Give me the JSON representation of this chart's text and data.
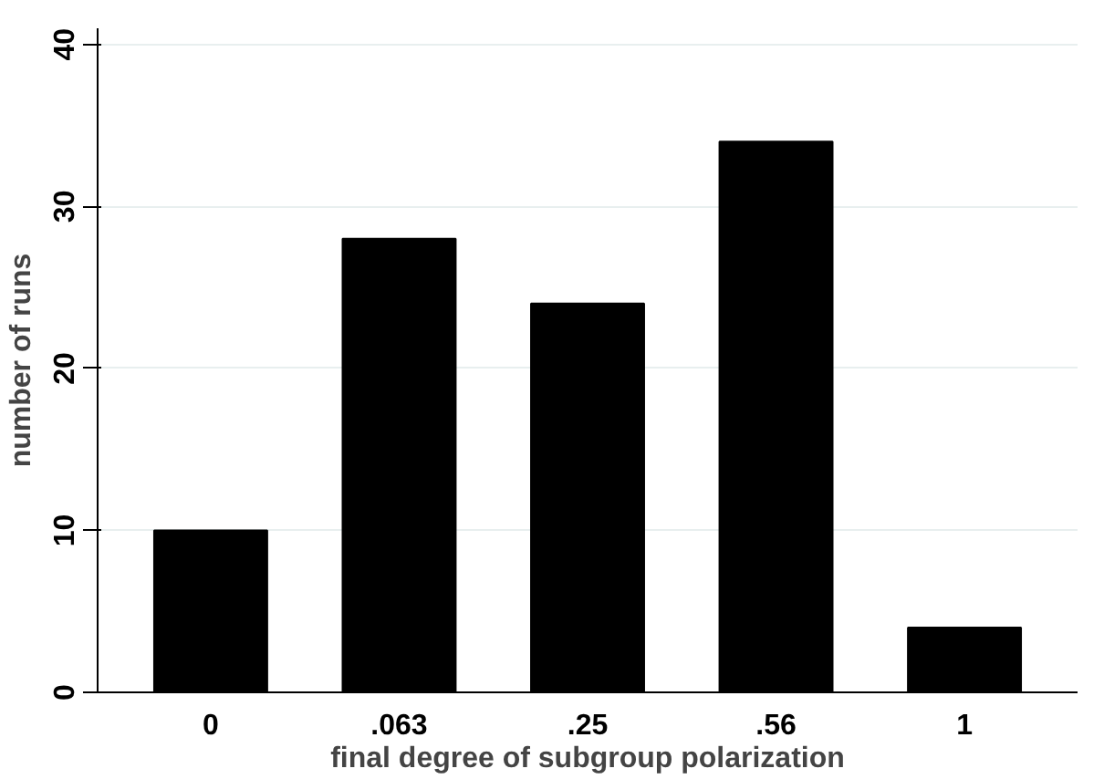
{
  "chart_data": {
    "type": "bar",
    "xlabel": "final degree of subgroup polarization",
    "ylabel": "number of runs",
    "categories": [
      "0",
      ".063",
      ".25",
      ".56",
      "1"
    ],
    "values": [
      10,
      28,
      24,
      34,
      4
    ],
    "color": "#000000",
    "ylim": [
      0,
      41
    ],
    "yticks": [
      0,
      10,
      20,
      30,
      40
    ],
    "grid": "y"
  }
}
